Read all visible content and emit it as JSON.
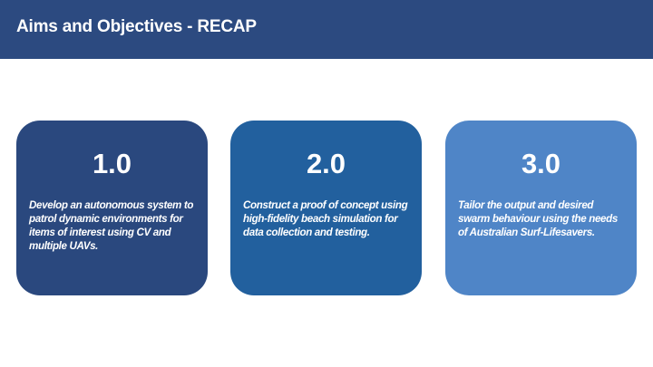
{
  "header": {
    "title": "Aims and Objectives - RECAP"
  },
  "cards": [
    {
      "number": "1.0",
      "text": "Develop an autonomous system to patrol dynamic environments for items of interest using CV and multiple UAVs."
    },
    {
      "number": "2.0",
      "text": "Construct a proof of concept using high-fidelity beach simulation for data collection and testing."
    },
    {
      "number": "3.0",
      "text": "Tailor the output and desired swarm behaviour using the needs of Australian Surf-Lifesavers."
    }
  ],
  "colors": {
    "header_bg": "#2c4a80",
    "card_1": "#2a487e",
    "card_2": "#22609e",
    "card_3": "#4f85c7",
    "text": "#ffffff"
  }
}
